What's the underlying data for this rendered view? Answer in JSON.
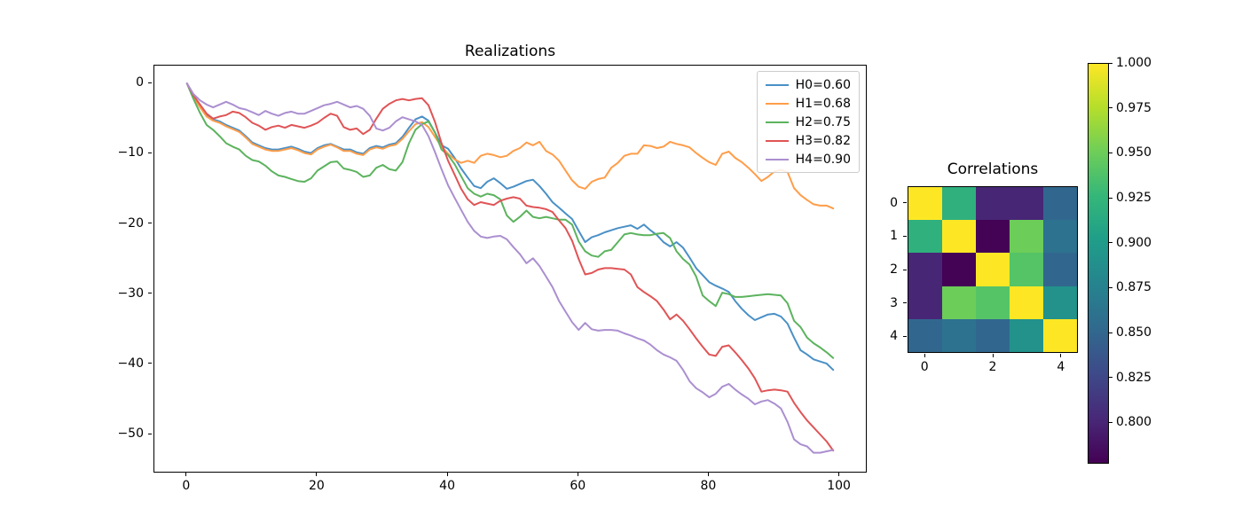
{
  "figure_background": "#ffffff",
  "chart_data": [
    {
      "type": "line",
      "title": "Realizations",
      "xlabel": "",
      "ylabel": "",
      "xlim": [
        -5,
        104
      ],
      "ylim": [
        -55.3,
        2.55
      ],
      "x_ticks": [
        0,
        20,
        40,
        60,
        80,
        100
      ],
      "x_tick_labels": [
        "0",
        "20",
        "40",
        "60",
        "80",
        "100"
      ],
      "y_ticks": [
        0,
        -10,
        -20,
        -30,
        -40,
        -50
      ],
      "y_tick_labels": [
        "0",
        "−10",
        "−20",
        "−30",
        "−40",
        "−50"
      ],
      "grid": false,
      "legend_position": "upper right",
      "x_start": 0,
      "x_step": 1,
      "n_points": 100,
      "series": [
        {
          "name": "H0=0.60",
          "color": "#4a90c6",
          "values": [
            0,
            -1.8,
            -3.3,
            -4.5,
            -5.1,
            -5.4,
            -5.9,
            -6.3,
            -6.7,
            -7.5,
            -8.4,
            -8.8,
            -9.2,
            -9.4,
            -9.4,
            -9.2,
            -9.0,
            -9.3,
            -9.7,
            -9.9,
            -9.2,
            -8.8,
            -8.6,
            -9.0,
            -9.4,
            -9.4,
            -9.8,
            -10.0,
            -9.2,
            -8.9,
            -9.1,
            -8.7,
            -8.5,
            -7.6,
            -6.3,
            -5.1,
            -4.7,
            -5.3,
            -7.0,
            -8.8,
            -9.3,
            -10.6,
            -12.1,
            -13.4,
            -14.6,
            -14.9,
            -14.0,
            -13.5,
            -14.2,
            -15.0,
            -14.7,
            -14.3,
            -13.9,
            -13.7,
            -14.6,
            -15.7,
            -16.9,
            -17.7,
            -18.5,
            -19.3,
            -21.0,
            -22.6,
            -21.9,
            -21.6,
            -21.2,
            -20.9,
            -20.6,
            -20.4,
            -20.2,
            -20.7,
            -20.1,
            -20.9,
            -21.6,
            -22.6,
            -23.2,
            -22.6,
            -23.4,
            -24.8,
            -26.3,
            -27.3,
            -28.3,
            -28.8,
            -29.2,
            -29.7,
            -31.0,
            -32.1,
            -33.0,
            -33.7,
            -33.3,
            -32.9,
            -32.8,
            -33.2,
            -34.2,
            -36.2,
            -38.0,
            -38.6,
            -39.3,
            -39.6,
            -39.9,
            -40.8
          ]
        },
        {
          "name": "H1=0.68",
          "color": "#ff9d49",
          "values": [
            0,
            -1.9,
            -3.4,
            -4.7,
            -5.3,
            -5.6,
            -6.1,
            -6.5,
            -6.9,
            -7.7,
            -8.6,
            -9.0,
            -9.4,
            -9.6,
            -9.6,
            -9.4,
            -9.2,
            -9.5,
            -9.9,
            -10.1,
            -9.4,
            -9.0,
            -8.7,
            -9.1,
            -9.6,
            -9.6,
            -10.0,
            -10.2,
            -9.4,
            -9.1,
            -9.3,
            -8.9,
            -8.7,
            -7.9,
            -6.8,
            -5.8,
            -5.5,
            -6.2,
            -7.6,
            -9.0,
            -10.0,
            -10.8,
            -11.3,
            -11.0,
            -11.3,
            -10.3,
            -10.0,
            -10.2,
            -10.5,
            -10.3,
            -9.6,
            -9.2,
            -8.4,
            -8.8,
            -8.3,
            -9.6,
            -10.1,
            -11.0,
            -12.4,
            -13.8,
            -14.7,
            -15.0,
            -14.0,
            -13.6,
            -13.4,
            -12.0,
            -11.3,
            -10.3,
            -10.0,
            -10.0,
            -8.8,
            -8.9,
            -9.2,
            -9.0,
            -8.3,
            -8.6,
            -8.8,
            -9.1,
            -9.9,
            -10.6,
            -11.2,
            -11.6,
            -10.0,
            -9.7,
            -10.6,
            -11.2,
            -12.0,
            -12.9,
            -13.9,
            -13.3,
            -12.5,
            -12.3,
            -12.6,
            -14.9,
            -15.9,
            -16.6,
            -17.2,
            -17.4,
            -17.4,
            -17.8
          ]
        },
        {
          "name": "H2=0.75",
          "color": "#5cb35e",
          "values": [
            0,
            -2.2,
            -4.2,
            -5.9,
            -6.6,
            -7.5,
            -8.5,
            -9.0,
            -9.4,
            -10.3,
            -10.9,
            -11.1,
            -11.7,
            -12.5,
            -13.1,
            -13.3,
            -13.6,
            -13.9,
            -14.0,
            -13.5,
            -12.4,
            -11.8,
            -11.2,
            -11.1,
            -12.1,
            -12.3,
            -12.6,
            -13.3,
            -13.1,
            -12.0,
            -11.6,
            -12.2,
            -12.4,
            -11.2,
            -8.5,
            -6.6,
            -5.8,
            -5.4,
            -7.0,
            -9.4,
            -10.2,
            -11.5,
            -13.2,
            -14.9,
            -15.7,
            -16.1,
            -15.7,
            -15.9,
            -16.5,
            -18.8,
            -19.7,
            -19.0,
            -18.1,
            -19.0,
            -19.2,
            -19.0,
            -19.2,
            -19.4,
            -19.4,
            -20.1,
            -22.5,
            -23.9,
            -24.5,
            -24.7,
            -23.9,
            -23.7,
            -22.6,
            -21.5,
            -21.3,
            -21.5,
            -21.6,
            -21.6,
            -21.4,
            -21.3,
            -22.0,
            -23.9,
            -25.0,
            -25.8,
            -27.5,
            -30.2,
            -31.0,
            -31.7,
            -29.8,
            -30.0,
            -30.4,
            -30.4,
            -30.3,
            -30.2,
            -30.1,
            -30.0,
            -30.1,
            -30.2,
            -31.3,
            -33.8,
            -34.7,
            -36.2,
            -37.0,
            -37.6,
            -38.3,
            -39.1
          ]
        },
        {
          "name": "H3=0.82",
          "color": "#e05456",
          "values": [
            0,
            -1.7,
            -3.0,
            -4.3,
            -5.0,
            -4.7,
            -4.5,
            -4.0,
            -4.2,
            -4.8,
            -5.6,
            -6.0,
            -6.6,
            -6.2,
            -6.0,
            -6.3,
            -5.9,
            -6.1,
            -6.3,
            -6.0,
            -5.6,
            -4.9,
            -4.3,
            -4.6,
            -6.2,
            -6.6,
            -6.4,
            -7.2,
            -6.6,
            -5.0,
            -3.6,
            -2.9,
            -2.4,
            -2.2,
            -2.4,
            -2.2,
            -2.1,
            -3.1,
            -5.5,
            -8.5,
            -11.0,
            -13.0,
            -15.0,
            -16.5,
            -17.3,
            -16.9,
            -17.1,
            -17.3,
            -16.7,
            -16.4,
            -16.2,
            -16.4,
            -17.4,
            -17.6,
            -17.7,
            -17.9,
            -18.3,
            -19.5,
            -20.6,
            -22.4,
            -25.0,
            -27.2,
            -27.0,
            -26.5,
            -26.3,
            -26.3,
            -26.4,
            -26.5,
            -27.2,
            -29.0,
            -29.7,
            -30.3,
            -31.0,
            -32.2,
            -33.6,
            -32.9,
            -33.8,
            -35.0,
            -36.3,
            -37.5,
            -38.6,
            -38.8,
            -37.5,
            -37.3,
            -38.3,
            -39.4,
            -40.6,
            -42.0,
            -43.9,
            -43.7,
            -43.6,
            -43.7,
            -43.9,
            -45.5,
            -46.8,
            -48.0,
            -49.0,
            -50.0,
            -51.0,
            -52.3
          ]
        },
        {
          "name": "H4=0.90",
          "color": "#ab8fd0",
          "values": [
            0,
            -1.5,
            -2.4,
            -3.0,
            -3.4,
            -3.0,
            -2.6,
            -3.0,
            -3.5,
            -3.7,
            -4.1,
            -4.5,
            -3.9,
            -4.3,
            -4.6,
            -4.2,
            -4.0,
            -4.3,
            -4.3,
            -3.9,
            -3.5,
            -3.1,
            -2.9,
            -2.6,
            -3.0,
            -3.4,
            -3.2,
            -3.6,
            -4.6,
            -6.4,
            -6.7,
            -6.3,
            -5.4,
            -4.8,
            -5.1,
            -5.4,
            -5.9,
            -7.5,
            -9.8,
            -12.2,
            -14.5,
            -16.3,
            -18.0,
            -19.7,
            -21.0,
            -21.8,
            -22.0,
            -21.8,
            -21.7,
            -22.2,
            -23.3,
            -24.3,
            -25.6,
            -24.9,
            -26.0,
            -27.5,
            -29.0,
            -31.0,
            -32.5,
            -34.0,
            -35.1,
            -34.1,
            -35.0,
            -35.2,
            -35.1,
            -35.1,
            -35.2,
            -35.6,
            -35.9,
            -36.3,
            -36.6,
            -37.2,
            -38.0,
            -38.6,
            -39.0,
            -39.5,
            -40.8,
            -42.4,
            -43.4,
            -44.0,
            -44.7,
            -44.2,
            -43.2,
            -42.8,
            -43.6,
            -44.3,
            -44.9,
            -45.7,
            -45.3,
            -45.1,
            -45.6,
            -46.3,
            -48.2,
            -50.7,
            -51.4,
            -51.7,
            -52.6,
            -52.6,
            -52.4,
            -52.2
          ]
        }
      ]
    },
    {
      "type": "heatmap",
      "title": "Correlations",
      "colormap": "viridis",
      "vmin": 0.777,
      "vmax": 1.0,
      "x_ticks": [
        0,
        2,
        4
      ],
      "x_tick_labels": [
        "0",
        "2",
        "4"
      ],
      "y_ticks": [
        0,
        1,
        2,
        3,
        4
      ],
      "y_tick_labels": [
        "0",
        "1",
        "2",
        "3",
        "4"
      ],
      "values": [
        [
          1.0,
          0.92,
          0.8,
          0.8,
          0.85
        ],
        [
          0.92,
          1.0,
          0.778,
          0.95,
          0.86
        ],
        [
          0.8,
          0.778,
          1.0,
          0.94,
          0.85
        ],
        [
          0.8,
          0.95,
          0.94,
          1.0,
          0.89
        ],
        [
          0.85,
          0.86,
          0.85,
          0.89,
          1.0
        ]
      ],
      "colorbar": {
        "tick_labels": [
          "1.000",
          "0.975",
          "0.950",
          "0.925",
          "0.900",
          "0.875",
          "0.850",
          "0.825",
          "0.800"
        ],
        "tick_values": [
          1.0,
          0.975,
          0.95,
          0.925,
          0.9,
          0.875,
          0.85,
          0.825,
          0.8
        ]
      }
    }
  ]
}
